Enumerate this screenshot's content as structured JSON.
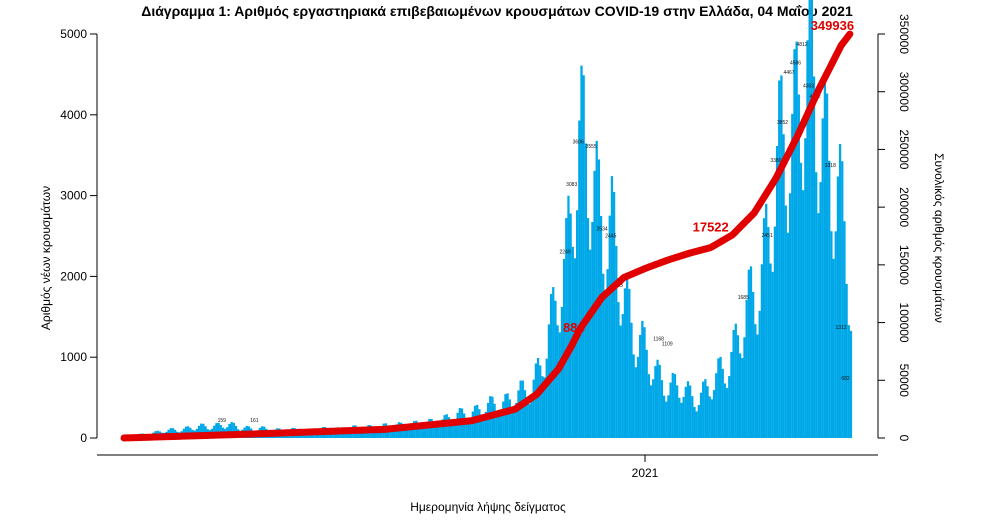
{
  "chart_data": {
    "type": "bar",
    "title": "Διάγραμμα 1: Αριθμός εργαστηριακά επιβεβαιωμένων κρουσμάτων COVID-19 στην Ελλάδα, 04 Μαΐου 2021",
    "xlabel": "Ημερομηνία λήψης δείγματος",
    "ylabel_left": "Αριθμός νέων κρουσμάτων",
    "ylabel_right": "Συνολικός αριθμός κρουσμάτων",
    "x_tick_labels": [
      "2021"
    ],
    "y_left_ticks": [
      0,
      1000,
      2000,
      3000,
      4000,
      5000
    ],
    "y_left_lim": [
      0,
      5000
    ],
    "y_right_ticks": [
      0,
      50000,
      100000,
      150000,
      200000,
      250000,
      300000,
      350000
    ],
    "y_right_lim": [
      0,
      350000
    ],
    "grid": false,
    "bar_color": "#00a8e8",
    "line_color": "#e00000",
    "series": [
      {
        "name": "Νέα κρούσματα",
        "kind": "bar",
        "anchors": [
          [
            0,
            15
          ],
          [
            20,
            90
          ],
          [
            30,
            120
          ],
          [
            45,
            160
          ],
          [
            60,
            110
          ],
          [
            80,
            90
          ],
          [
            100,
            110
          ],
          [
            120,
            140
          ],
          [
            140,
            180
          ],
          [
            150,
            250
          ],
          [
            160,
            320
          ],
          [
            170,
            400
          ],
          [
            180,
            500
          ],
          [
            185,
            560
          ],
          [
            188,
            700
          ],
          [
            191,
            900
          ],
          [
            194,
            1150
          ],
          [
            197,
            1400
          ],
          [
            200,
            1850
          ],
          [
            203,
            2250
          ],
          [
            206,
            3100
          ],
          [
            209,
            3500
          ],
          [
            212,
            3300
          ],
          [
            215,
            3200
          ],
          [
            218,
            2900
          ],
          [
            221,
            2600
          ],
          [
            224,
            2450
          ],
          [
            227,
            2000
          ],
          [
            230,
            1700
          ],
          [
            233,
            1450
          ],
          [
            236,
            1250
          ],
          [
            239,
            1050
          ],
          [
            242,
            880
          ],
          [
            245,
            760
          ],
          [
            248,
            700
          ],
          [
            251,
            650
          ],
          [
            254,
            600
          ],
          [
            257,
            580
          ],
          [
            260,
            520
          ],
          [
            263,
            500
          ],
          [
            266,
            560
          ],
          [
            269,
            620
          ],
          [
            272,
            700
          ],
          [
            275,
            830
          ],
          [
            278,
            980
          ],
          [
            281,
            1150
          ],
          [
            284,
            1350
          ],
          [
            287,
            1550
          ],
          [
            290,
            1800
          ],
          [
            293,
            2100
          ],
          [
            296,
            2550
          ],
          [
            299,
            3000
          ],
          [
            302,
            3400
          ],
          [
            305,
            3700
          ],
          [
            308,
            4000
          ],
          [
            311,
            4350
          ],
          [
            314,
            4300
          ],
          [
            317,
            4100
          ],
          [
            320,
            3900
          ],
          [
            323,
            3600
          ],
          [
            326,
            3200
          ],
          [
            329,
            2700
          ],
          [
            332,
            2300
          ],
          [
            334,
            1600
          ]
        ],
        "amplitude": 0.3,
        "noise": 0.06
      },
      {
        "name": "Συνολικός αριθμός κρουσμάτων",
        "kind": "line",
        "axis": "right",
        "anchors": [
          [
            0,
            0
          ],
          [
            60,
            3500
          ],
          [
            120,
            7500
          ],
          [
            160,
            15000
          ],
          [
            180,
            25000
          ],
          [
            190,
            38000
          ],
          [
            200,
            60000
          ],
          [
            206,
            80000
          ],
          [
            210,
            95000
          ],
          [
            220,
            122000
          ],
          [
            230,
            139000
          ],
          [
            240,
            147000
          ],
          [
            250,
            154000
          ],
          [
            260,
            160000
          ],
          [
            270,
            165000
          ],
          [
            280,
            176000
          ],
          [
            290,
            195000
          ],
          [
            300,
            225000
          ],
          [
            310,
            262000
          ],
          [
            320,
            303000
          ],
          [
            330,
            340000
          ],
          [
            334,
            349936
          ]
        ]
      }
    ],
    "peak_labels": [
      {
        "x": 209,
        "text": "3606"
      },
      {
        "x": 215,
        "text": "3555"
      },
      {
        "x": 203,
        "text": "2249"
      },
      {
        "x": 206,
        "text": "3083"
      },
      {
        "x": 220,
        "text": "2534"
      },
      {
        "x": 224,
        "text": "2445"
      },
      {
        "x": 227,
        "text": "1833"
      },
      {
        "x": 246,
        "text": "1168"
      },
      {
        "x": 250,
        "text": "1109"
      },
      {
        "x": 285,
        "text": "1685"
      },
      {
        "x": 296,
        "text": "2451"
      },
      {
        "x": 300,
        "text": "3380"
      },
      {
        "x": 303,
        "text": "3852"
      },
      {
        "x": 306,
        "text": "4467"
      },
      {
        "x": 309,
        "text": "4586"
      },
      {
        "x": 312,
        "text": "4812"
      },
      {
        "x": 315,
        "text": "4303"
      },
      {
        "x": 318,
        "text": "4172"
      },
      {
        "x": 325,
        "text": "3318"
      },
      {
        "x": 330,
        "text": "1312"
      },
      {
        "x": 332,
        "text": "682"
      },
      {
        "x": 45,
        "text": "159"
      },
      {
        "x": 60,
        "text": "161"
      }
    ],
    "annotations": [
      {
        "x": 207,
        "y_right": 88400,
        "text": "884"
      },
      {
        "x": 270,
        "y_right": 175220,
        "text": "17522"
      },
      {
        "x": 326,
        "y_right": 349936,
        "text": "349936"
      }
    ]
  }
}
